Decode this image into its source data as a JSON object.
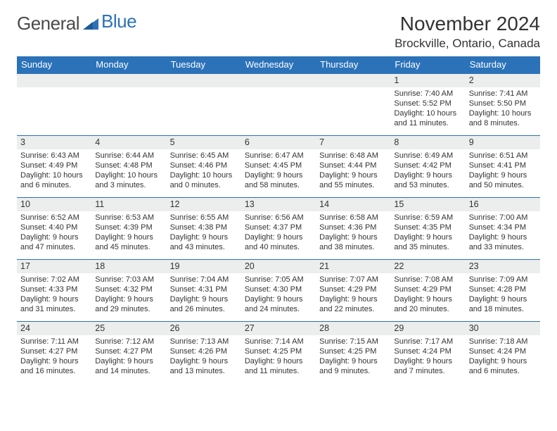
{
  "brand": {
    "part1": "General",
    "part2": "Blue"
  },
  "header": {
    "month_title": "November 2024",
    "location": "Brockville, Ontario, Canada"
  },
  "style": {
    "accent": "#2b72b9",
    "bg": "#ffffff",
    "text": "#333333",
    "daybar_bg": "#eceded",
    "header_font_size": 28,
    "location_font_size": 17,
    "daynum_font_size": 12.5,
    "cell_font_size": 11,
    "th_font_size": 13
  },
  "calendar": {
    "day_names": [
      "Sunday",
      "Monday",
      "Tuesday",
      "Wednesday",
      "Thursday",
      "Friday",
      "Saturday"
    ],
    "weeks": [
      [
        null,
        null,
        null,
        null,
        null,
        {
          "n": "1",
          "sunrise": "7:40 AM",
          "sunset": "5:52 PM",
          "daylight": "10 hours and 11 minutes."
        },
        {
          "n": "2",
          "sunrise": "7:41 AM",
          "sunset": "5:50 PM",
          "daylight": "10 hours and 8 minutes."
        }
      ],
      [
        {
          "n": "3",
          "sunrise": "6:43 AM",
          "sunset": "4:49 PM",
          "daylight": "10 hours and 6 minutes."
        },
        {
          "n": "4",
          "sunrise": "6:44 AM",
          "sunset": "4:48 PM",
          "daylight": "10 hours and 3 minutes."
        },
        {
          "n": "5",
          "sunrise": "6:45 AM",
          "sunset": "4:46 PM",
          "daylight": "10 hours and 0 minutes."
        },
        {
          "n": "6",
          "sunrise": "6:47 AM",
          "sunset": "4:45 PM",
          "daylight": "9 hours and 58 minutes."
        },
        {
          "n": "7",
          "sunrise": "6:48 AM",
          "sunset": "4:44 PM",
          "daylight": "9 hours and 55 minutes."
        },
        {
          "n": "8",
          "sunrise": "6:49 AM",
          "sunset": "4:42 PM",
          "daylight": "9 hours and 53 minutes."
        },
        {
          "n": "9",
          "sunrise": "6:51 AM",
          "sunset": "4:41 PM",
          "daylight": "9 hours and 50 minutes."
        }
      ],
      [
        {
          "n": "10",
          "sunrise": "6:52 AM",
          "sunset": "4:40 PM",
          "daylight": "9 hours and 47 minutes."
        },
        {
          "n": "11",
          "sunrise": "6:53 AM",
          "sunset": "4:39 PM",
          "daylight": "9 hours and 45 minutes."
        },
        {
          "n": "12",
          "sunrise": "6:55 AM",
          "sunset": "4:38 PM",
          "daylight": "9 hours and 43 minutes."
        },
        {
          "n": "13",
          "sunrise": "6:56 AM",
          "sunset": "4:37 PM",
          "daylight": "9 hours and 40 minutes."
        },
        {
          "n": "14",
          "sunrise": "6:58 AM",
          "sunset": "4:36 PM",
          "daylight": "9 hours and 38 minutes."
        },
        {
          "n": "15",
          "sunrise": "6:59 AM",
          "sunset": "4:35 PM",
          "daylight": "9 hours and 35 minutes."
        },
        {
          "n": "16",
          "sunrise": "7:00 AM",
          "sunset": "4:34 PM",
          "daylight": "9 hours and 33 minutes."
        }
      ],
      [
        {
          "n": "17",
          "sunrise": "7:02 AM",
          "sunset": "4:33 PM",
          "daylight": "9 hours and 31 minutes."
        },
        {
          "n": "18",
          "sunrise": "7:03 AM",
          "sunset": "4:32 PM",
          "daylight": "9 hours and 29 minutes."
        },
        {
          "n": "19",
          "sunrise": "7:04 AM",
          "sunset": "4:31 PM",
          "daylight": "9 hours and 26 minutes."
        },
        {
          "n": "20",
          "sunrise": "7:05 AM",
          "sunset": "4:30 PM",
          "daylight": "9 hours and 24 minutes."
        },
        {
          "n": "21",
          "sunrise": "7:07 AM",
          "sunset": "4:29 PM",
          "daylight": "9 hours and 22 minutes."
        },
        {
          "n": "22",
          "sunrise": "7:08 AM",
          "sunset": "4:29 PM",
          "daylight": "9 hours and 20 minutes."
        },
        {
          "n": "23",
          "sunrise": "7:09 AM",
          "sunset": "4:28 PM",
          "daylight": "9 hours and 18 minutes."
        }
      ],
      [
        {
          "n": "24",
          "sunrise": "7:11 AM",
          "sunset": "4:27 PM",
          "daylight": "9 hours and 16 minutes."
        },
        {
          "n": "25",
          "sunrise": "7:12 AM",
          "sunset": "4:27 PM",
          "daylight": "9 hours and 14 minutes."
        },
        {
          "n": "26",
          "sunrise": "7:13 AM",
          "sunset": "4:26 PM",
          "daylight": "9 hours and 13 minutes."
        },
        {
          "n": "27",
          "sunrise": "7:14 AM",
          "sunset": "4:25 PM",
          "daylight": "9 hours and 11 minutes."
        },
        {
          "n": "28",
          "sunrise": "7:15 AM",
          "sunset": "4:25 PM",
          "daylight": "9 hours and 9 minutes."
        },
        {
          "n": "29",
          "sunrise": "7:17 AM",
          "sunset": "4:24 PM",
          "daylight": "9 hours and 7 minutes."
        },
        {
          "n": "30",
          "sunrise": "7:18 AM",
          "sunset": "4:24 PM",
          "daylight": "9 hours and 6 minutes."
        }
      ]
    ]
  },
  "labels": {
    "sunrise_prefix": "Sunrise: ",
    "sunset_prefix": "Sunset: ",
    "daylight_prefix": "Daylight: "
  }
}
